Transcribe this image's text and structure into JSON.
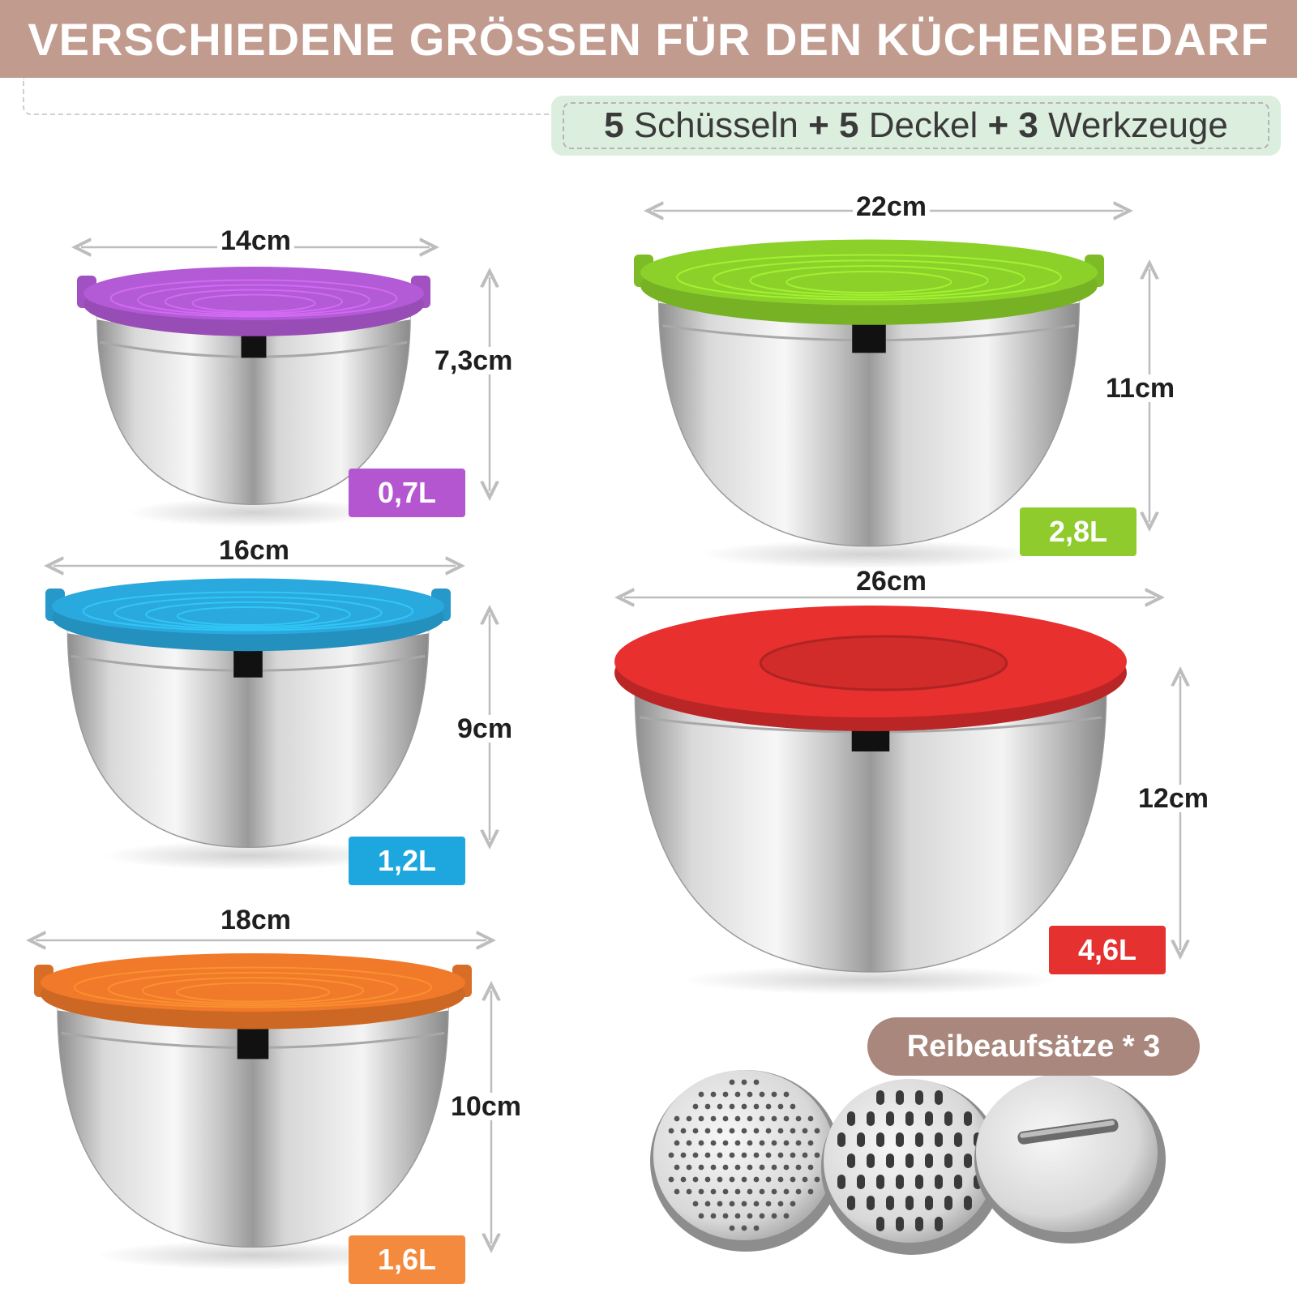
{
  "header": {
    "title": "VERSCHIEDENE GRÖSSEN FÜR DEN KÜCHENBEDARF",
    "subtitle": {
      "bowls_count": "5",
      "bowls_label": "Schüsseln",
      "plus1": "+",
      "lids_count": "5",
      "lids_label": "Deckel",
      "plus2": "+",
      "tools_count": "3",
      "tools_label": "Werkzeuge"
    }
  },
  "bowls": [
    {
      "id": "purple",
      "width": "14cm",
      "height": "7,3cm",
      "capacity": "0,7L",
      "lid_color": "#b35ad6",
      "badge_color": "#b356d0"
    },
    {
      "id": "blue",
      "width": "16cm",
      "height": "9cm",
      "capacity": "1,2L",
      "lid_color": "#2aa9df",
      "badge_color": "#1ea7de"
    },
    {
      "id": "orange",
      "width": "18cm",
      "height": "10cm",
      "capacity": "1,6L",
      "lid_color": "#f07a2a",
      "badge_color": "#f48a3e"
    },
    {
      "id": "green",
      "width": "22cm",
      "height": "11cm",
      "capacity": "2,8L",
      "lid_color": "#8bd12a",
      "badge_color": "#8fcb2c"
    },
    {
      "id": "red",
      "width": "26cm",
      "height": "12cm",
      "capacity": "4,6L",
      "lid_color": "#e8302f",
      "badge_color": "#e63131"
    }
  ],
  "graters": {
    "label": "Reibeaufsätze * 3",
    "pill_color": "#a9877c"
  }
}
